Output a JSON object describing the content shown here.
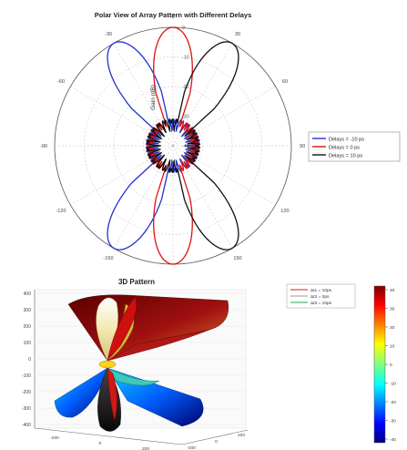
{
  "chart_data": [
    {
      "type": "polar-line",
      "title": "Polar View of Array Pattern with Different Delays",
      "radial_label": "Gain (dB)",
      "angle_ticks": [
        "0",
        "30",
        "60",
        "90",
        "120",
        "150",
        "180",
        "-150",
        "-120",
        "-90",
        "-60",
        "-30"
      ],
      "radial_ticks": [
        "-40",
        "-30",
        "-20",
        "-10",
        "0"
      ],
      "radial_range": [
        -40,
        0
      ],
      "grid": true,
      "legend_position": "right",
      "series": [
        {
          "name": "Delays = -10 ps",
          "color": "#2233cc",
          "main_beam_deg": -150,
          "lobe_deg": [
            -150,
            -30
          ]
        },
        {
          "name": "Delays = 0 ps",
          "color": "#dd1111",
          "main_beam_deg": 180,
          "lobe_deg": [
            180,
            0
          ]
        },
        {
          "name": "Delays = 10 ps",
          "color": "#111111",
          "main_beam_deg": 150,
          "lobe_deg": [
            150,
            30
          ]
        }
      ]
    },
    {
      "type": "surface-3d",
      "title": "3D Pattern",
      "colorbar_ticks": [
        "40",
        "30",
        "20",
        "10",
        "0",
        "-10",
        "-20",
        "-30",
        "-40"
      ],
      "colorbar_range": [
        -40,
        40
      ],
      "z_ticks": [
        "400",
        "300",
        "200",
        "100",
        "0",
        "-100",
        "-200",
        "-300",
        "-400"
      ],
      "x_ticks": [
        "-200",
        "0",
        "200"
      ],
      "y_ticks": [
        "-200",
        "0",
        "200"
      ],
      "legend_entries": [
        {
          "name": "Δt1 = 10ps",
          "color": "#dd2222"
        },
        {
          "name": "Δt2 = 0ps",
          "color": "#999999"
        },
        {
          "name": "Δt3 = 10ps",
          "color": "#22aa44"
        }
      ]
    }
  ],
  "colors": {
    "axis": "#444444",
    "grid": "#bbbbbb"
  }
}
